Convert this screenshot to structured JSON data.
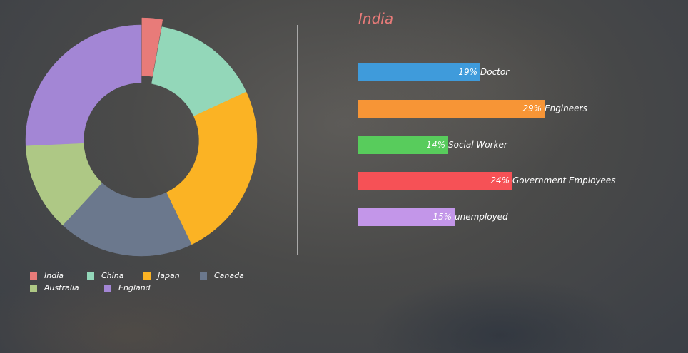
{
  "chart_data": [
    {
      "type": "pie",
      "style": "donut",
      "categories": [
        "India",
        "China",
        "Japan",
        "Canada",
        "Australia",
        "England"
      ],
      "values": [
        3,
        16,
        26,
        20,
        13,
        27
      ],
      "colors": [
        "#e87b79",
        "#93d7b9",
        "#fbb324",
        "#6b788d",
        "#aec885",
        "#a386d5"
      ],
      "exploded": "India",
      "legend": "bottom"
    },
    {
      "type": "bar",
      "orientation": "horizontal",
      "title": "India",
      "categories": [
        "Doctor",
        "Engineers",
        "Social Worker",
        "Government Employees",
        "unemployed"
      ],
      "values": [
        19,
        29,
        14,
        24,
        15
      ],
      "value_labels": [
        "19%",
        "29%",
        "14%",
        "24%",
        "15%"
      ],
      "colors": [
        "#3f9bdb",
        "#f79536",
        "#58cc5c",
        "#f65156",
        "#c396e9"
      ],
      "xlim": [
        0,
        100
      ]
    }
  ]
}
